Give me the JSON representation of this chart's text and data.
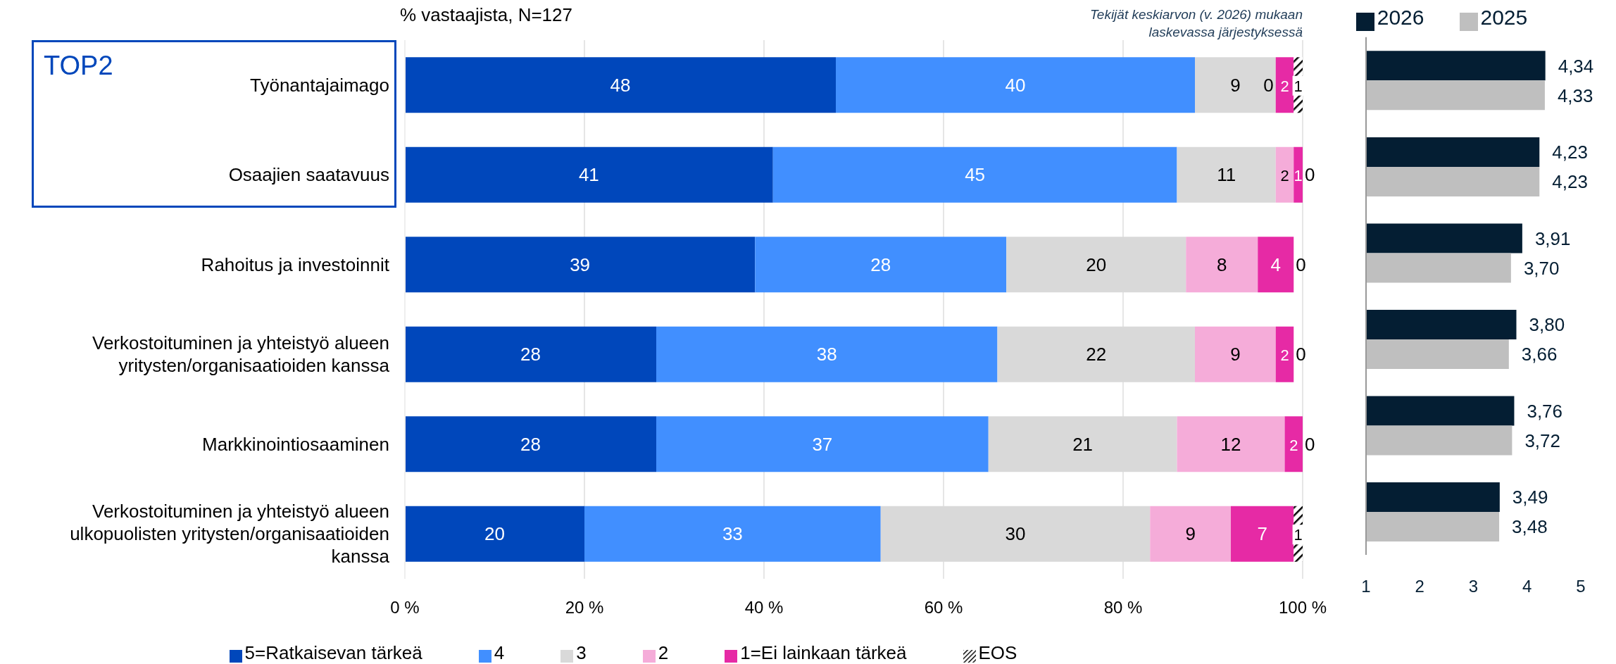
{
  "chart_data": [
    {
      "type": "bar",
      "orientation": "horizontal",
      "stacked": true,
      "title": "% vastaajista, N=127",
      "categories": [
        "Työnantajaimago",
        "Osaajien saatavuus",
        "Rahoitus ja investoinnit",
        "Verkostoituminen ja yhteistyö alueen yritysten/organisaatioiden kanssa",
        "Markkinointiosaaminen",
        "Verkostoituminen ja yhteistyö alueen ulkopuolisten yritysten/organisaatioiden kanssa"
      ],
      "series": [
        {
          "name": "5=Ratkaisevan tärkeä",
          "color": "#0047bb",
          "values": [
            48,
            41,
            39,
            28,
            28,
            20
          ]
        },
        {
          "name": "4",
          "color": "#418fff",
          "values": [
            40,
            45,
            28,
            38,
            37,
            33
          ]
        },
        {
          "name": "3",
          "color": "#d9d9d9",
          "values": [
            9,
            11,
            20,
            22,
            21,
            30
          ]
        },
        {
          "name": "2",
          "color": "#f5acd9",
          "values": [
            0,
            2,
            8,
            9,
            12,
            9
          ]
        },
        {
          "name": "1=Ei lainkaan tärkeä",
          "color": "#e62aa5",
          "values": [
            2,
            1,
            4,
            2,
            2,
            7
          ]
        },
        {
          "name": "EOS",
          "color": "#000000",
          "values": [
            1,
            0,
            0,
            0,
            0,
            1
          ]
        }
      ],
      "xlim": [
        0,
        100
      ],
      "xticks": [
        {
          "value": 0,
          "label": "0 %"
        },
        {
          "value": 20,
          "label": "20 %"
        },
        {
          "value": 40,
          "label": "40 %"
        },
        {
          "value": 60,
          "label": "60 %"
        },
        {
          "value": 80,
          "label": "80 %"
        },
        {
          "value": 100,
          "label": "100 %"
        }
      ],
      "grid": "x",
      "legend": "bottom",
      "data_labels": true,
      "annotations": [
        "Tekijät keskiarvon (v. 2026) mukaan laskevassa järjestyksessä",
        "TOP2"
      ]
    },
    {
      "type": "bar",
      "orientation": "horizontal",
      "categories": [
        null,
        null,
        null,
        null,
        null,
        null
      ],
      "series": [
        {
          "name": "2026",
          "color": "#041e33",
          "values": [
            4.34,
            4.23,
            3.91,
            3.8,
            3.76,
            3.49
          ],
          "value_labels": [
            "4,34",
            "4,23",
            "3,91",
            "3,80",
            "3,76",
            "3,49"
          ]
        },
        {
          "name": "2025",
          "color": "#bfbfbf",
          "values": [
            4.33,
            4.23,
            3.7,
            3.66,
            3.72,
            3.48
          ],
          "value_labels": [
            "4,33",
            "4,23",
            "3,70",
            "3,66",
            "3,72",
            "3,48"
          ]
        }
      ],
      "xlim": [
        1,
        5
      ],
      "xticks": [
        1,
        2,
        3,
        4,
        5
      ],
      "legend": "top"
    }
  ]
}
